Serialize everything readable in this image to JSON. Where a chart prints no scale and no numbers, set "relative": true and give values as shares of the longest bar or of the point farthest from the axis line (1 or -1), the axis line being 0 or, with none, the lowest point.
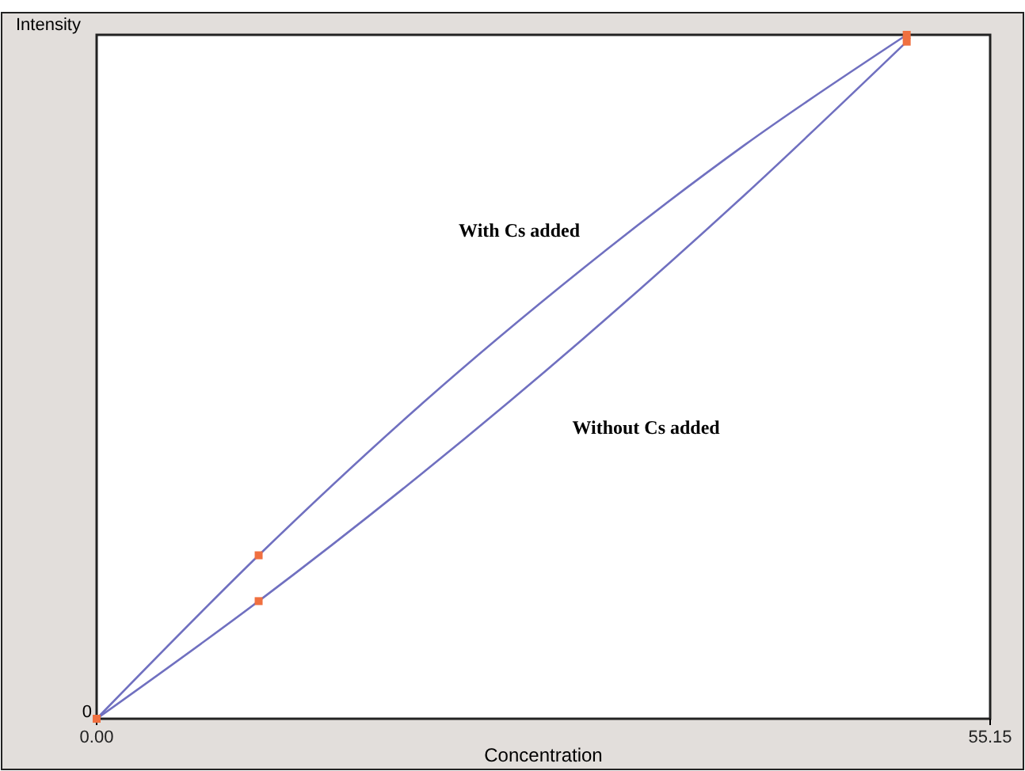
{
  "chart_data": {
    "type": "line",
    "xlabel": "Concentration",
    "ylabel": "Intensity",
    "relative": true,
    "xlim": [
      0,
      55.15
    ],
    "xticks": [
      {
        "value": 0,
        "label": "0.00"
      },
      55.15
    ],
    "annotations": [
      "0"
    ],
    "grid": false,
    "legend": false,
    "series": [
      {
        "name": "With Cs added",
        "type": "line",
        "color": "#7070c0",
        "x": [
          0,
          10,
          20,
          30,
          40,
          50
        ],
        "values": [
          0,
          0.239,
          0.459,
          0.658,
          0.839,
          1
        ]
      },
      {
        "name": "Without Cs added",
        "type": "line",
        "color": "#7070c0",
        "x": [
          0,
          10,
          20,
          30,
          40,
          50
        ],
        "values": [
          0,
          0.172,
          0.357,
          0.555,
          0.766,
          0.99
        ]
      },
      {
        "type": "scatter",
        "color": "#f07040",
        "marker": "square",
        "x": [
          0,
          10,
          50
        ],
        "values": [
          0,
          0.239,
          1
        ]
      },
      {
        "type": "scatter",
        "color": "#f07040",
        "marker": "square",
        "x": [
          10,
          50
        ],
        "values": [
          0.172,
          0.99
        ]
      }
    ]
  }
}
